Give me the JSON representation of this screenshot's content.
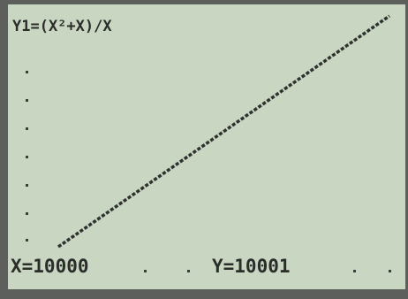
{
  "screen": {
    "equation": "Y1=(X²+X)/X",
    "cursor_x": "X=10000",
    "cursor_y": "Y=10001"
  }
}
